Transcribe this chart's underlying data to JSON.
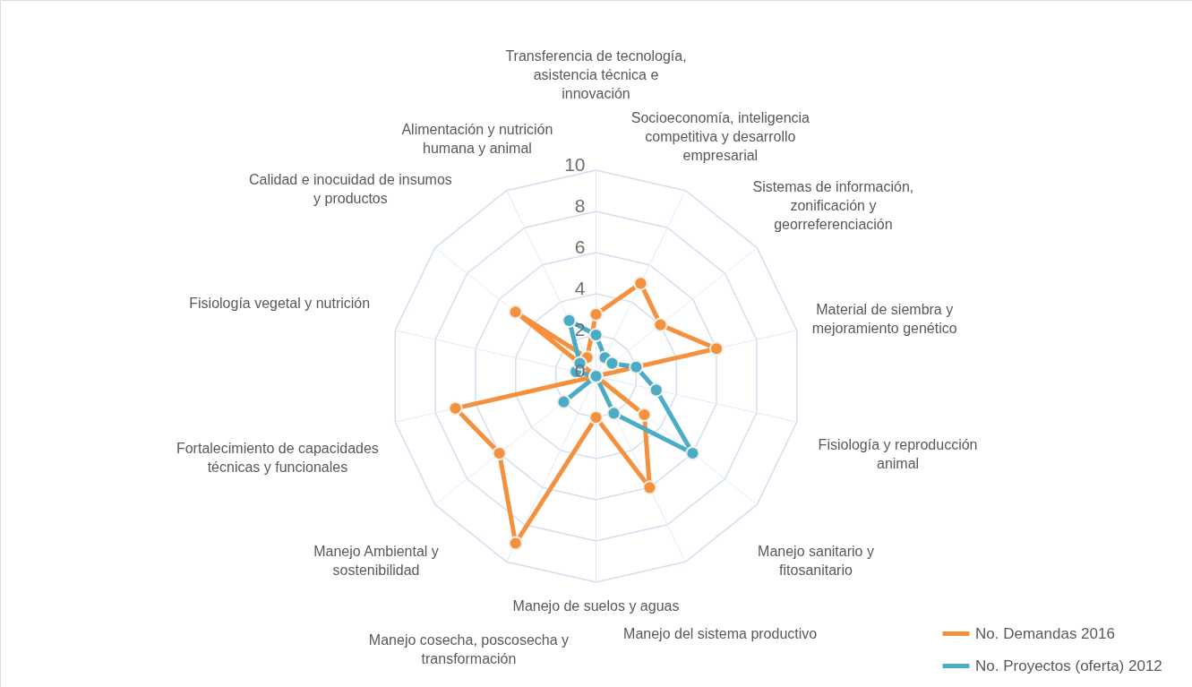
{
  "chart_data": {
    "type": "radar",
    "categories": [
      "Transferencia de tecnología, asistencia técnica e innovación",
      "Socioeconomía, inteligencia competitiva y desarrollo empresarial",
      "Sistemas de información, zonificación y georreferenciación",
      "Material de siembra y mejoramiento genético",
      "Fisiología y reproducción animal",
      "Manejo sanitario y fitosanitario",
      "Manejo del sistema productivo",
      "Manejo de suelos y aguas",
      "Manejo cosecha, poscosecha y transformación",
      "Manejo Ambiental y sostenibilidad",
      "Fortalecimiento de capacidades técnicas y funcionales",
      "Fisiología vegetal y nutrición",
      "Calidad e inocuidad de insumos y productos",
      "Alimentación y nutrición humana y animal"
    ],
    "series": [
      {
        "name": "No. Demandas 2016",
        "color": "#f5913e",
        "values": [
          3,
          5,
          4,
          6,
          0,
          3,
          6,
          2,
          9,
          6,
          7,
          0,
          5,
          1
        ]
      },
      {
        "name": "No. Proyectos (oferta) 2012",
        "color": "#4aacc6",
        "values": [
          2,
          1,
          1,
          2,
          3,
          6,
          2,
          0,
          0,
          2,
          0,
          1,
          1,
          3
        ]
      }
    ],
    "ylim": [
      0,
      10
    ],
    "yticks": [
      0,
      2,
      4,
      6,
      8,
      10
    ],
    "grid": true,
    "legend": "bottom right",
    "marker": "circle",
    "line_style": "solid"
  }
}
